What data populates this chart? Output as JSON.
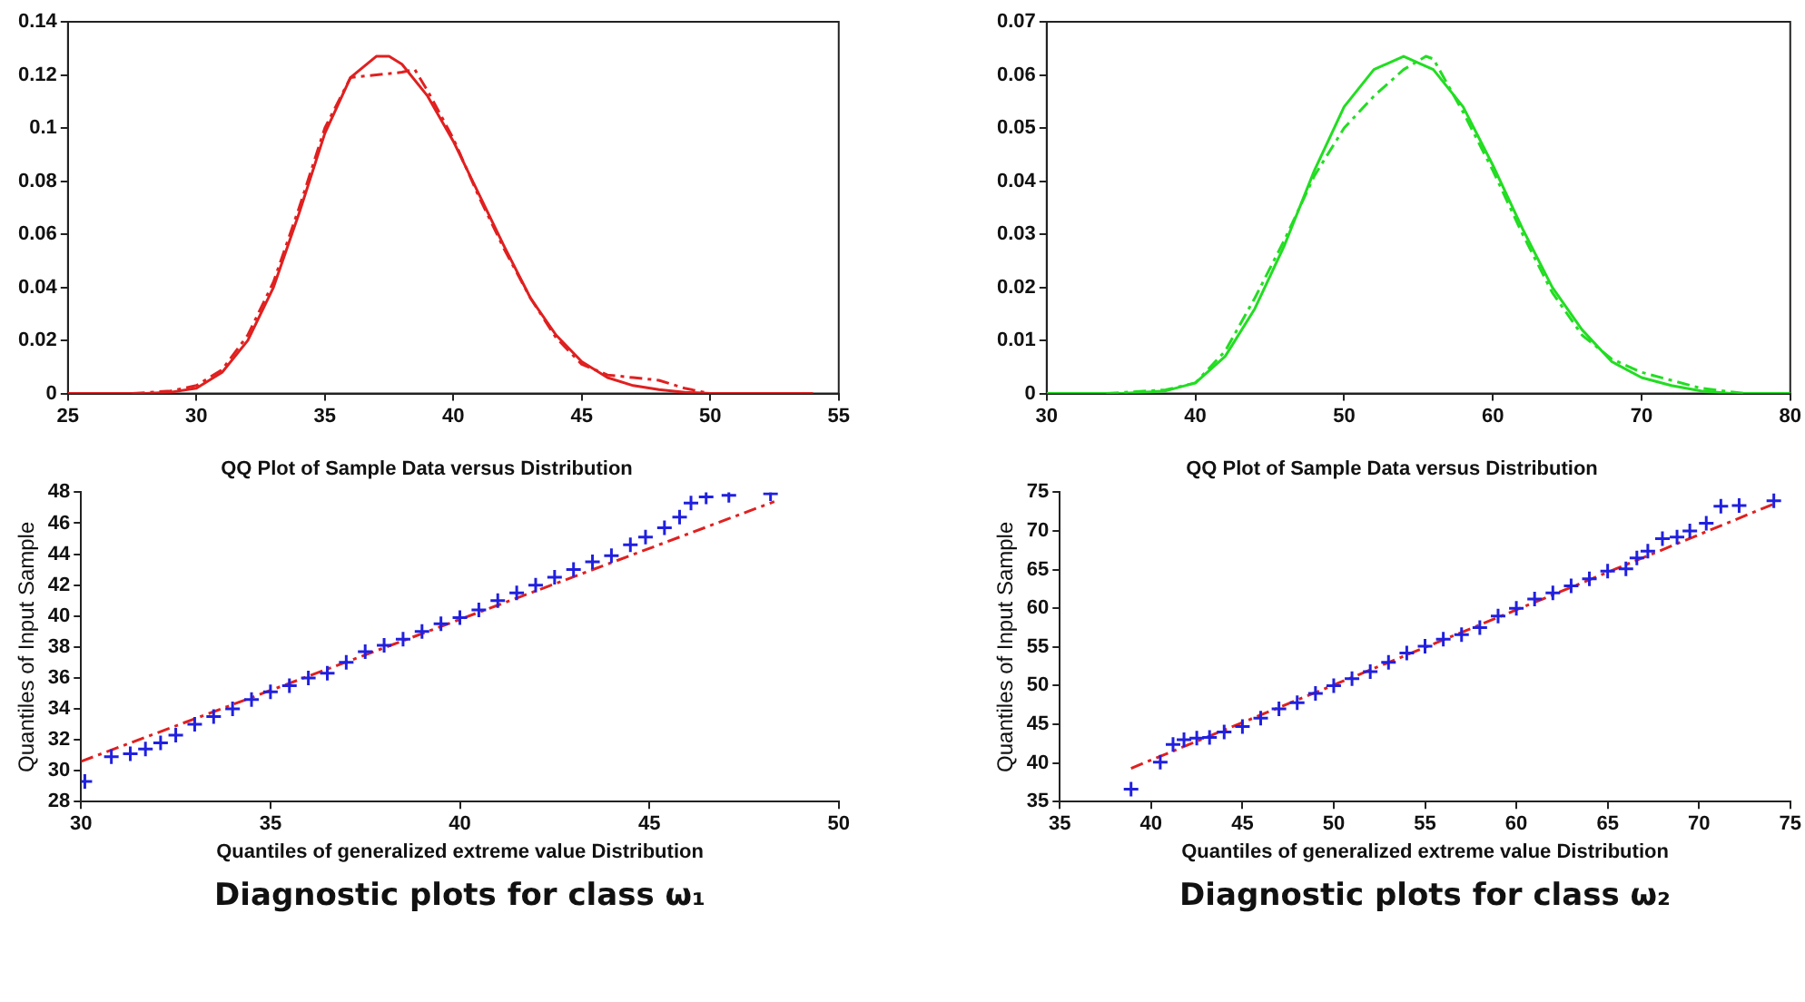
{
  "chart_data": [
    {
      "type": "line",
      "xlim": [
        25,
        55
      ],
      "xticks": [
        25,
        30,
        35,
        40,
        45,
        50,
        55
      ],
      "ylim": [
        0,
        0.14
      ],
      "yticks": [
        0,
        0.02,
        0.04,
        0.06,
        0.08,
        0.1,
        0.12,
        0.14
      ],
      "grid": false,
      "legend": false,
      "series": [
        {
          "color": "#e02020",
          "line_style": "solid",
          "x": [
            25,
            28,
            29,
            30,
            31,
            32,
            33,
            34,
            35,
            36,
            37,
            37.5,
            38,
            39,
            40,
            41,
            42,
            43,
            44,
            45,
            46,
            47,
            48,
            49,
            50,
            54
          ],
          "values": [
            0,
            0,
            0.0005,
            0.002,
            0.008,
            0.02,
            0.04,
            0.068,
            0.098,
            0.119,
            0.127,
            0.127,
            0.124,
            0.112,
            0.095,
            0.075,
            0.055,
            0.036,
            0.022,
            0.012,
            0.006,
            0.003,
            0.0015,
            0.0005,
            0,
            0
          ]
        },
        {
          "color": "#e02020",
          "line_style": "dashed",
          "x": [
            27.5,
            29,
            30,
            31,
            32,
            33,
            34,
            35,
            36,
            37,
            38,
            38.5,
            39,
            40,
            41,
            42,
            43,
            44,
            45,
            46,
            47,
            48,
            49,
            50
          ],
          "values": [
            0,
            0.001,
            0.003,
            0.009,
            0.022,
            0.042,
            0.07,
            0.1,
            0.119,
            0.12,
            0.121,
            0.122,
            0.114,
            0.096,
            0.074,
            0.054,
            0.036,
            0.021,
            0.011,
            0.007,
            0.006,
            0.005,
            0.002,
            0
          ]
        }
      ]
    },
    {
      "type": "line",
      "xlim": [
        30,
        80
      ],
      "xticks": [
        30,
        40,
        50,
        60,
        70,
        80
      ],
      "ylim": [
        0,
        0.07
      ],
      "yticks": [
        0,
        0.01,
        0.02,
        0.03,
        0.04,
        0.05,
        0.06,
        0.07
      ],
      "grid": false,
      "legend": false,
      "series": [
        {
          "color": "#22dd22",
          "line_style": "solid",
          "x": [
            30,
            35,
            38,
            40,
            42,
            44,
            46,
            48,
            50,
            52,
            54,
            56,
            58,
            60,
            62,
            64,
            66,
            68,
            70,
            72,
            74,
            76,
            80
          ],
          "values": [
            0,
            0,
            0.0005,
            0.002,
            0.007,
            0.016,
            0.028,
            0.042,
            0.054,
            0.061,
            0.0635,
            0.061,
            0.054,
            0.043,
            0.031,
            0.02,
            0.012,
            0.006,
            0.003,
            0.0015,
            0.0005,
            0,
            0
          ]
        },
        {
          "color": "#22dd22",
          "line_style": "dashed",
          "x": [
            34,
            38,
            40,
            42,
            44,
            46,
            48,
            50,
            52,
            54,
            55.5,
            56,
            58,
            60,
            62,
            64,
            66,
            68,
            70,
            72,
            74,
            77
          ],
          "values": [
            0,
            0.0007,
            0.002,
            0.008,
            0.018,
            0.029,
            0.041,
            0.05,
            0.056,
            0.061,
            0.0635,
            0.063,
            0.053,
            0.042,
            0.03,
            0.019,
            0.011,
            0.0065,
            0.004,
            0.0025,
            0.001,
            0
          ]
        }
      ]
    },
    {
      "type": "scatter",
      "title": "QQ Plot of Sample Data versus Distribution",
      "xlabel": "Quantiles of generalized extreme value Distribution",
      "ylabel": "Quantiles of Input Sample",
      "xlim": [
        30,
        50
      ],
      "xticks": [
        30,
        35,
        40,
        45,
        50
      ],
      "ylim": [
        28,
        48
      ],
      "yticks": [
        28,
        30,
        32,
        34,
        36,
        38,
        40,
        42,
        44,
        46,
        48
      ],
      "grid": false,
      "legend": false,
      "annotations": [
        "Diagnostic plots for class ω₁"
      ],
      "series": [
        {
          "type": "scatter",
          "color": "#2020e0",
          "marker": "cross",
          "x": [
            30.1,
            30.8,
            31.3,
            31.7,
            32.1,
            32.5,
            33,
            33.5,
            34,
            34.5,
            35,
            35.5,
            36,
            36.5,
            37,
            37.5,
            38,
            38.5,
            39,
            39.5,
            40,
            40.5,
            41,
            41.5,
            42,
            42.5,
            43,
            43.5,
            44,
            44.5,
            44.9,
            45.4,
            45.8,
            46.1,
            46.5,
            47.1,
            48.2
          ],
          "values": [
            29.3,
            30.9,
            31.1,
            31.4,
            31.8,
            32.3,
            33,
            33.5,
            34,
            34.6,
            35.1,
            35.5,
            36,
            36.3,
            37,
            37.7,
            38.1,
            38.5,
            39,
            39.5,
            39.9,
            40.4,
            41,
            41.5,
            42,
            42.5,
            43,
            43.5,
            43.9,
            44.6,
            45.1,
            45.7,
            46.4,
            47.3,
            47.7,
            47.8,
            47.9
          ]
        },
        {
          "type": "line",
          "color": "#e02020",
          "line_style": "dashed",
          "marker": "none",
          "x": [
            30,
            48.3
          ],
          "values": [
            30.6,
            47.4
          ]
        }
      ]
    },
    {
      "type": "scatter",
      "title": "QQ Plot of Sample Data versus Distribution",
      "xlabel": "Quantiles of generalized extreme value Distribution",
      "ylabel": "Quantiles of Input Sample",
      "xlim": [
        35,
        75
      ],
      "xticks": [
        35,
        40,
        45,
        50,
        55,
        60,
        65,
        70,
        75
      ],
      "ylim": [
        35,
        75
      ],
      "yticks": [
        35,
        40,
        45,
        50,
        55,
        60,
        65,
        70,
        75
      ],
      "grid": false,
      "legend": false,
      "annotations": [
        "Diagnostic plots for class ω₂"
      ],
      "series": [
        {
          "type": "scatter",
          "color": "#2020e0",
          "marker": "cross",
          "x": [
            38.9,
            40.5,
            41.2,
            41.8,
            42.5,
            43.2,
            44,
            45,
            46,
            47,
            48,
            49,
            50,
            51,
            52,
            53,
            54,
            55,
            56,
            57,
            58,
            59,
            60,
            61,
            62,
            63,
            64,
            65,
            66,
            66.6,
            67.2,
            68,
            68.8,
            69.5,
            70.4,
            71.2,
            72.2,
            74.1
          ],
          "values": [
            36.6,
            40.1,
            42.4,
            43,
            43.2,
            43.3,
            44,
            44.7,
            45.8,
            47,
            47.8,
            49,
            50,
            50.9,
            51.8,
            53,
            54.2,
            55.1,
            56,
            56.6,
            57.5,
            59,
            60,
            61.2,
            62,
            62.9,
            63.8,
            64.8,
            65.1,
            66.5,
            67.4,
            69,
            69.2,
            70,
            71,
            73.2,
            73.3,
            73.9
          ]
        },
        {
          "type": "line",
          "color": "#e02020",
          "line_style": "dashed",
          "marker": "none",
          "x": [
            38.9,
            74.1
          ],
          "values": [
            39.3,
            73.5
          ]
        }
      ]
    }
  ]
}
